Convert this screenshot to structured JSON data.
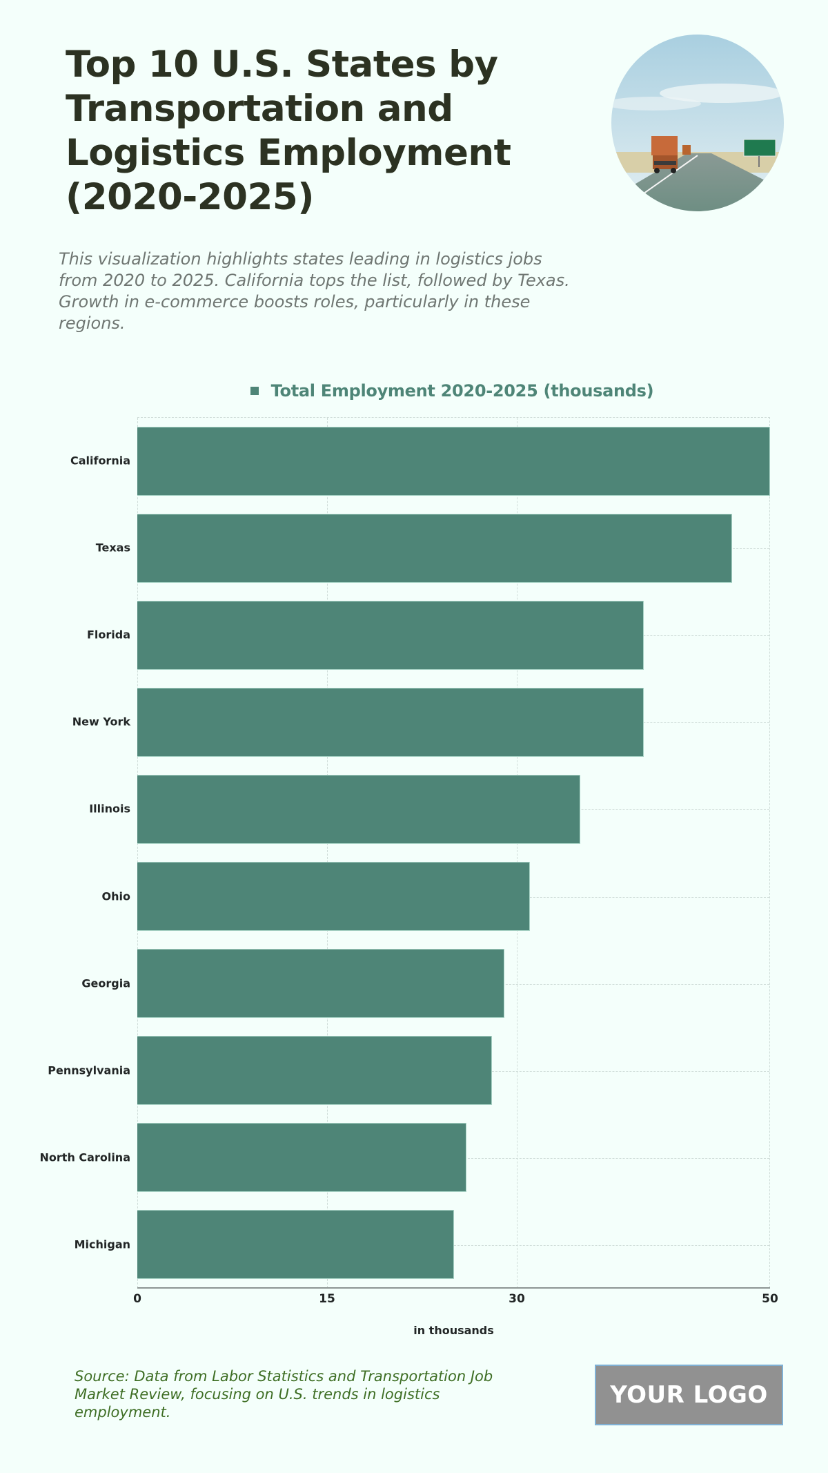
{
  "header": {
    "title": "Top 10 U.S. States by Transportation and Logistics Employment (2020-2025)",
    "subtitle": "This visualization highlights states leading in logistics jobs from 2020 to 2025. California tops the list, followed by Texas. Growth in e-commerce boosts roles, particularly in these regions.",
    "hero_image": "highway-trucks-photo"
  },
  "colors": {
    "background": "#f4fffb",
    "bar": "#4e8577",
    "title": "#2c3222",
    "subtitle": "#6f7672",
    "source": "#3e6e24",
    "logo_bg": "#919191"
  },
  "chart_data": {
    "type": "bar",
    "orientation": "horizontal",
    "title": "Top 10 U.S. States by Transportation and Logistics Employment (2020-2025)",
    "categories": [
      "California",
      "Texas",
      "Florida",
      "New York",
      "Illinois",
      "Ohio",
      "Georgia",
      "Pennsylvania",
      "North Carolina",
      "Michigan"
    ],
    "series": [
      {
        "name": "Total Employment 2020-2025 (thousands)",
        "values": [
          50,
          47,
          40,
          40,
          35,
          31,
          29,
          28,
          26,
          25
        ]
      }
    ],
    "xlabel": "in thousands",
    "ylabel": "",
    "xlim": [
      0,
      50
    ],
    "x_ticks": [
      0,
      15,
      30,
      50
    ],
    "grid": true,
    "legend_position": "top"
  },
  "legend": {
    "label": "Total Employment 2020-2025 (thousands)"
  },
  "axis": {
    "title": "in thousands",
    "ticks": [
      "0",
      "15",
      "30",
      "50"
    ]
  },
  "footer": {
    "source": "Source: Data from Labor Statistics and Transportation Job Market Review, focusing on U.S. trends in logistics employment.",
    "logo": "YOUR LOGO"
  }
}
